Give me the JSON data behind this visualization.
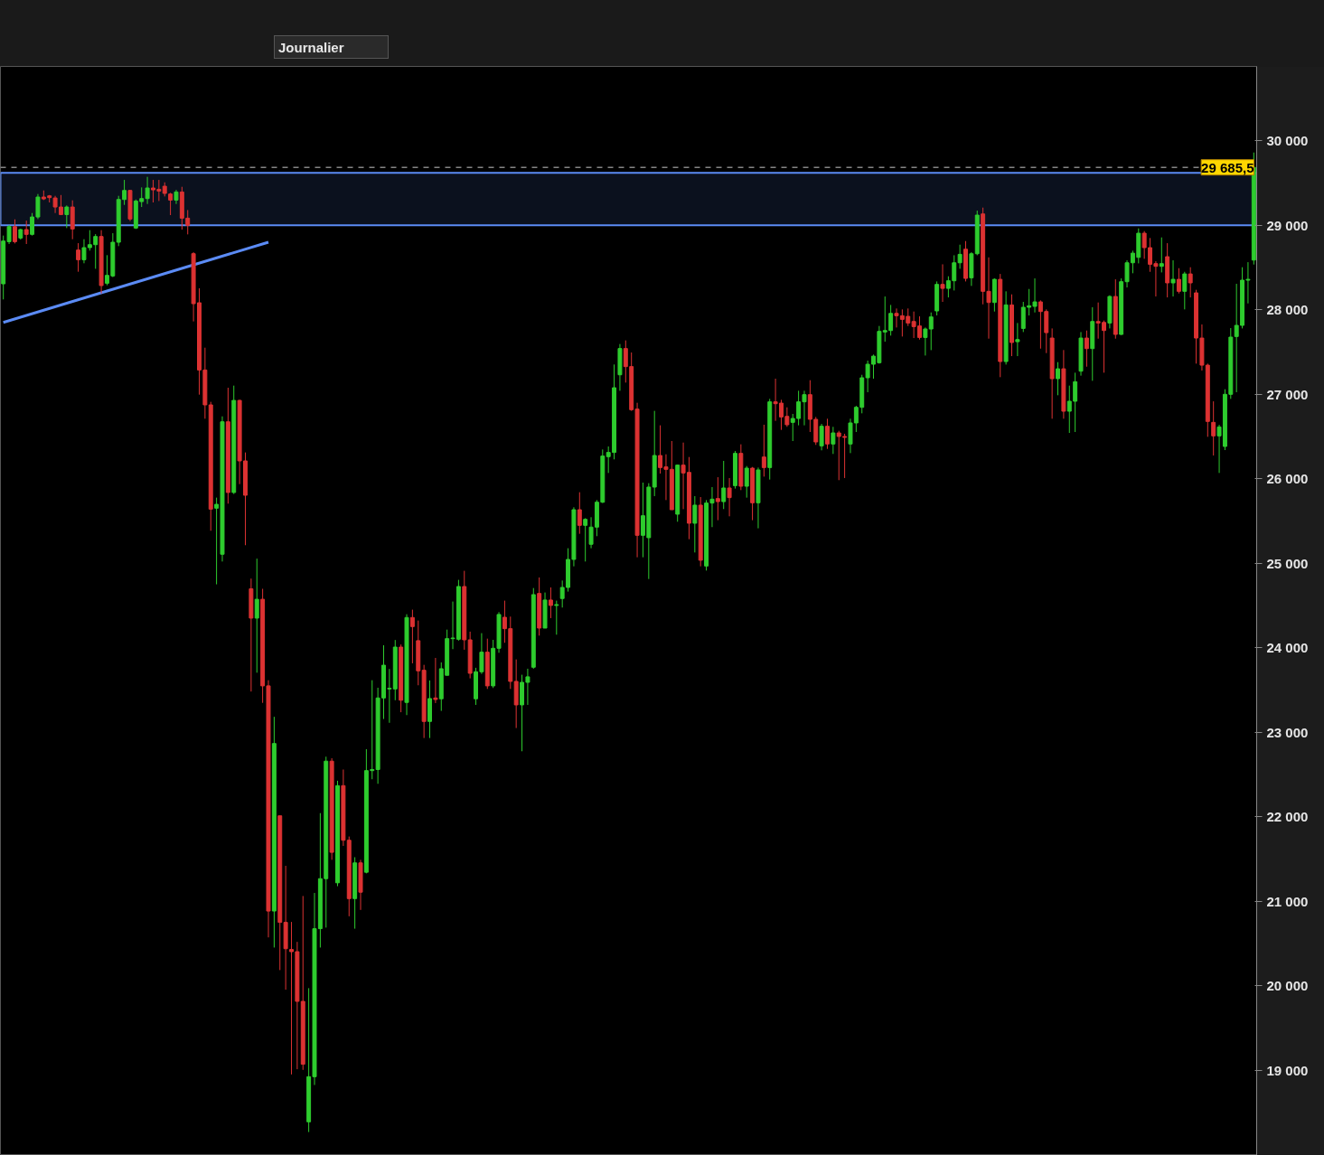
{
  "chart_data": {
    "type": "candlestick",
    "annotations": [
      "Journalier"
    ],
    "colors": [
      "#2ecc2e",
      "#2ecc2e",
      "#dc3232",
      "#2ecc2e",
      "#dc3232",
      "#2ecc2e",
      "#2ecc2e",
      "#dc3232",
      "#dc3232",
      "#dc3232",
      "#dc3232",
      "#2ecc2e",
      "#dc3232",
      "#dc3232",
      "#2ecc2e",
      "#2ecc2e",
      "#2ecc2e",
      "#dc3232",
      "#2ecc2e",
      "#2ecc2e",
      "#2ecc2e",
      "#2ecc2e",
      "#dc3232",
      "#2ecc2e",
      "#2ecc2e",
      "#2ecc2e",
      "#dc3232",
      "#dc3232",
      "#dc3232",
      "#dc3232",
      "#2ecc2e",
      "#dc3232",
      "#dc3232",
      "#dc3232",
      "#dc3232",
      "#dc3232",
      "#dc3232",
      "#2ecc2e",
      "#2ecc2e",
      "#dc3232",
      "#2ecc2e",
      "#dc3232",
      "#dc3232",
      "#dc3232",
      "#2ecc2e",
      "#dc3232",
      "#dc3232",
      "#2ecc2e",
      "#dc3232",
      "#dc3232",
      "#dc3232",
      "#dc3232",
      "#dc3232",
      "#2ecc2e",
      "#2ecc2e",
      "#2ecc2e",
      "#2ecc2e",
      "#dc3232",
      "#2ecc2e",
      "#dc3232",
      "#dc3232",
      "#2ecc2e",
      "#dc3232",
      "#2ecc2e",
      "#2ecc2e",
      "#2ecc2e",
      "#2ecc2e",
      "#2ecc2e",
      "#2ecc2e",
      "#dc3232",
      "#2ecc2e",
      "#dc3232",
      "#dc3232",
      "#dc3232",
      "#2ecc2e",
      "#dc3232",
      "#2ecc2e",
      "#2ecc2e",
      "#2ecc2e",
      "#2ecc2e",
      "#dc3232",
      "#dc3232",
      "#2ecc2e",
      "#2ecc2e",
      "#dc3232",
      "#2ecc2e",
      "#2ecc2e",
      "#dc3232",
      "#dc3232",
      "#dc3232",
      "#2ecc2e",
      "#2ecc2e",
      "#2ecc2e",
      "#dc3232",
      "#2ecc2e",
      "#dc3232",
      "#2ecc2e",
      "#2ecc2e",
      "#2ecc2e",
      "#2ecc2e",
      "#dc3232",
      "#2ecc2e",
      "#2ecc2e",
      "#2ecc2e",
      "#2ecc2e",
      "#2ecc2e",
      "#2ecc2e",
      "#2ecc2e",
      "#dc3232",
      "#dc3232",
      "#dc3232",
      "#2ecc2e",
      "#2ecc2e",
      "#2ecc2e",
      "#dc3232",
      "#dc3232",
      "#dc3232",
      "#2ecc2e",
      "#dc3232",
      "#dc3232",
      "#2ecc2e",
      "#dc3232",
      "#2ecc2e",
      "#2ecc2e",
      "#dc3232",
      "#2ecc2e",
      "#dc3232",
      "#2ecc2e",
      "#dc3232",
      "#2ecc2e",
      "#dc3232",
      "#2ecc2e",
      "#dc3232",
      "#2ecc2e",
      "#dc3232",
      "#dc3232",
      "#dc3232",
      "#2ecc2e",
      "#2ecc2e",
      "#2ecc2e",
      "#dc3232",
      "#dc3232",
      "#2ecc2e",
      "#dc3232",
      "#2ecc2e",
      "#dc3232",
      "#dc3232",
      "#2ecc2e",
      "#2ecc2e",
      "#2ecc2e",
      "#2ecc2e",
      "#2ecc2e",
      "#2ecc2e",
      "#2ecc2e",
      "#2ecc2e",
      "#dc3232",
      "#dc3232",
      "#dc3232",
      "#dc3232",
      "#dc3232",
      "#2ecc2e",
      "#2ecc2e",
      "#2ecc2e",
      "#dc3232",
      "#2ecc2e",
      "#2ecc2e",
      "#2ecc2e",
      "#dc3232",
      "#2ecc2e",
      "#2ecc2e",
      "#dc3232",
      "#dc3232",
      "#2ecc2e",
      "#dc3232",
      "#2ecc2e",
      "#dc3232",
      "#2ecc2e",
      "#2ecc2e",
      "#2ecc2e",
      "#2ecc2e",
      "#dc3232",
      "#dc3232",
      "#dc3232",
      "#2ecc2e",
      "#dc3232",
      "#2ecc2e",
      "#2ecc2e",
      "#2ecc2e",
      "#dc3232",
      "#2ecc2e",
      "#dc3232",
      "#dc3232",
      "#2ecc2e",
      "#dc3232",
      "#2ecc2e",
      "#2ecc2e",
      "#2ecc2e",
      "#2ecc2e",
      "#dc3232",
      "#dc3232",
      "#dc3232",
      "#2ecc2e",
      "#dc3232",
      "#2ecc2e",
      "#dc3232",
      "#2ecc2e",
      "#dc3232",
      "#dc3232",
      "#dc3232",
      "#dc3232",
      "#dc3232",
      "#2ecc2e",
      "#2ecc2e",
      "#2ecc2e",
      "#2ecc2e",
      "#2ecc2e",
      "#2ecc2e",
      "#2ecc2e"
    ],
    "categories": [
      null,
      null,
      null,
      null,
      null,
      null,
      null,
      null,
      null,
      null,
      null,
      null,
      null,
      null,
      null,
      null,
      null,
      null,
      null,
      null,
      null,
      null,
      null,
      null,
      null,
      null,
      null,
      null,
      null,
      null,
      null,
      null,
      null,
      null,
      null,
      null,
      null,
      null,
      null,
      null,
      null,
      null,
      null,
      null,
      null,
      null,
      null,
      null,
      null,
      null,
      null,
      null,
      null,
      null,
      null,
      null,
      null,
      null,
      null,
      null,
      null,
      null,
      null,
      null,
      null,
      null,
      null,
      null,
      null,
      null,
      null,
      null,
      null,
      null,
      null,
      null,
      null,
      null,
      null,
      null,
      null,
      null,
      null,
      null,
      null,
      null,
      null,
      null,
      null,
      null,
      null,
      null,
      null,
      null,
      null,
      null,
      null,
      null,
      null,
      null,
      null,
      null,
      null,
      null,
      null,
      null,
      null,
      null,
      null,
      null,
      null,
      null,
      null,
      null,
      null,
      null,
      null,
      null,
      null,
      null,
      null,
      null,
      null,
      null,
      null,
      null,
      null,
      null,
      null,
      null,
      null,
      null,
      null,
      null,
      null,
      null,
      null,
      null,
      null,
      null,
      null,
      null,
      null,
      null,
      null,
      null,
      null,
      null,
      null,
      null,
      null,
      null,
      null,
      null,
      null,
      null,
      null,
      null,
      null,
      null,
      null,
      null,
      null,
      null,
      null,
      null,
      null,
      null,
      null,
      null,
      null,
      null,
      null,
      null,
      null,
      null,
      null,
      null,
      null,
      null,
      null,
      null,
      null,
      null,
      null,
      null,
      null,
      null,
      null,
      null,
      null,
      null,
      null,
      null,
      null,
      null,
      null,
      null,
      null,
      null,
      null,
      null,
      null,
      null,
      null,
      null,
      null,
      null,
      null,
      null,
      null,
      null,
      null,
      null,
      null,
      null,
      null,
      null
    ],
    "ohlc": [
      [
        28307,
        28878,
        28122,
        28813
      ],
      [
        28806,
        29002,
        28778,
        28984
      ],
      [
        28984,
        29070,
        28785,
        28806
      ],
      [
        28849,
        28960,
        28830,
        28949
      ],
      [
        28949,
        29055,
        28778,
        28892
      ],
      [
        28892,
        29145,
        28878,
        29098
      ],
      [
        29098,
        29370,
        29073,
        29334
      ],
      [
        29334,
        29412,
        29298,
        29312
      ],
      [
        29348,
        29358,
        29270,
        29327
      ],
      [
        29323,
        29348,
        29145,
        29216
      ],
      [
        29216,
        29358,
        29120,
        29127
      ],
      [
        29127,
        29234,
        28967,
        29216
      ],
      [
        29216,
        29295,
        28835,
        28956
      ],
      [
        28707,
        28788,
        28450,
        28592
      ],
      [
        28592,
        28835,
        28550,
        28735
      ],
      [
        28735,
        28942,
        28700,
        28770
      ],
      [
        28770,
        28895,
        28485,
        28867
      ],
      [
        28867,
        28942,
        28193,
        28286
      ],
      [
        28314,
        28646,
        28290,
        28407
      ],
      [
        28400,
        28906,
        28386,
        28799
      ],
      [
        28799,
        29348,
        28753,
        29305
      ],
      [
        29305,
        29537,
        29241,
        29412
      ],
      [
        29412,
        29419,
        29049,
        29074
      ],
      [
        28967,
        29305,
        28956,
        29287
      ],
      [
        29280,
        29448,
        29216,
        29316
      ],
      [
        29316,
        29573,
        29252,
        29441
      ],
      [
        29441,
        29537,
        29270,
        29419
      ],
      [
        29426,
        29537,
        29287,
        29405
      ],
      [
        29462,
        29508,
        29341,
        29377
      ],
      [
        29370,
        29384,
        29120,
        29298
      ],
      [
        29298,
        29419,
        29252,
        29394
      ],
      [
        29394,
        29455,
        28949,
        29084
      ],
      [
        29084,
        29180,
        28892,
        28999
      ],
      [
        28664,
        28681,
        27862,
        28072
      ],
      [
        28083,
        28254,
        26995,
        27287
      ],
      [
        27287,
        27551,
        26710,
        26874
      ],
      [
        26874,
        26910,
        25384,
        25640
      ],
      [
        25651,
        25776,
        24750,
        25697
      ],
      [
        25106,
        26738,
        25020,
        26674
      ],
      [
        26674,
        27077,
        25705,
        25837
      ],
      [
        25837,
        27102,
        25819,
        26927
      ],
      [
        26927,
        26934,
        25936,
        26211
      ],
      [
        26211,
        26311,
        25213,
        25804
      ],
      [
        24697,
        24818,
        23481,
        24350
      ],
      [
        24350,
        25054,
        23704,
        24573
      ],
      [
        24573,
        24697,
        23347,
        23548
      ],
      [
        23548,
        23615,
        20571,
        20883
      ],
      [
        20883,
        23182,
        20451,
        22866
      ],
      [
        22010,
        22010,
        20184,
        20749
      ],
      [
        20749,
        21418,
        19952,
        20437
      ],
      [
        20428,
        20754,
        18949,
        20402
      ],
      [
        20402,
        20518,
        19011,
        19814
      ],
      [
        19814,
        21061,
        19003,
        19070
      ],
      [
        18388,
        19970,
        18267,
        18922
      ],
      [
        18922,
        21097,
        18824,
        20674
      ],
      [
        20674,
        22042,
        20451,
        21266
      ],
      [
        21266,
        22710,
        20687,
        22657
      ],
      [
        22657,
        22692,
        21489,
        21578
      ],
      [
        21217,
        22425,
        21177,
        22367
      ],
      [
        22367,
        22558,
        21654,
        21721
      ],
      [
        21721,
        21765,
        20821,
        21030
      ],
      [
        21030,
        21520,
        20674,
        21453
      ],
      [
        21453,
        21489,
        20896,
        21106
      ],
      [
        21342,
        22799,
        21329,
        22545
      ],
      [
        22545,
        23615,
        22443,
        22558
      ],
      [
        22558,
        23526,
        22389,
        23405
      ],
      [
        23405,
        24029,
        23156,
        23793
      ],
      [
        23512,
        23748,
        23111,
        23520
      ],
      [
        23512,
        24091,
        23378,
        24007
      ],
      [
        24007,
        24038,
        23236,
        23378
      ],
      [
        23352,
        24396,
        23202,
        24357
      ],
      [
        24357,
        24450,
        23815,
        24250
      ],
      [
        24083,
        24321,
        23555,
        23726
      ],
      [
        23733,
        23797,
        22931,
        23127
      ],
      [
        23127,
        23612,
        22931,
        23398
      ],
      [
        23405,
        23879,
        23345,
        23387
      ],
      [
        23395,
        23826,
        23252,
        23751
      ],
      [
        23673,
        24214,
        23673,
        24107
      ],
      [
        24107,
        24546,
        23983,
        24114
      ],
      [
        24100,
        24803,
        24083,
        24724
      ],
      [
        24724,
        24910,
        23976,
        24093
      ],
      [
        24093,
        24190,
        23637,
        23697
      ],
      [
        23395,
        23762,
        23323,
        23715
      ],
      [
        23715,
        24172,
        23690,
        23947
      ],
      [
        23947,
        24107,
        23512,
        23548
      ],
      [
        23548,
        24093,
        23523,
        23993
      ],
      [
        23993,
        24421,
        23940,
        24393
      ],
      [
        24360,
        24557,
        24058,
        24225
      ],
      [
        24225,
        24368,
        23512,
        23601
      ],
      [
        23601,
        23861,
        23049,
        23323
      ],
      [
        23323,
        23680,
        22774,
        23590
      ],
      [
        23590,
        23751,
        23323,
        23655
      ],
      [
        23769,
        24706,
        23751,
        24628
      ],
      [
        24642,
        24831,
        24143,
        24232
      ],
      [
        24232,
        24653,
        24232,
        24564
      ],
      [
        24564,
        24713,
        24350,
        24500
      ],
      [
        24500,
        24557,
        24154,
        24510
      ],
      [
        24582,
        24795,
        24475,
        24713
      ],
      [
        24713,
        25177,
        24664,
        25045
      ],
      [
        25045,
        25662,
        24963,
        25633
      ],
      [
        25633,
        25840,
        25348,
        25448
      ],
      [
        25448,
        25533,
        25020,
        25519
      ],
      [
        25224,
        25544,
        25177,
        25427
      ],
      [
        25427,
        25747,
        25320,
        25722
      ],
      [
        25722,
        26346,
        25712,
        26268
      ],
      [
        26261,
        26382,
        26068,
        26311
      ],
      [
        26311,
        27352,
        26229,
        27077
      ],
      [
        27230,
        27594,
        27041,
        27541
      ],
      [
        27541,
        27637,
        27138,
        27327
      ],
      [
        27327,
        27494,
        26803,
        26817
      ],
      [
        26824,
        26899,
        25070,
        25330
      ],
      [
        25330,
        25954,
        25070,
        25562
      ],
      [
        25302,
        25947,
        24813,
        25901
      ],
      [
        25901,
        26803,
        25794,
        26275
      ],
      [
        26275,
        26632,
        26061,
        26132
      ],
      [
        26140,
        26289,
        25747,
        26111
      ],
      [
        26111,
        26446,
        25633,
        25633
      ],
      [
        25580,
        26168,
        25491,
        26161
      ],
      [
        26161,
        26428,
        25640,
        26068
      ],
      [
        26075,
        26257,
        25284,
        25473
      ],
      [
        25473,
        25794,
        25127,
        25687
      ],
      [
        25687,
        25783,
        24963,
        25035
      ],
      [
        24967,
        25747,
        24913,
        25712
      ],
      [
        25712,
        25901,
        25427,
        25758
      ],
      [
        25765,
        26018,
        25509,
        25729
      ],
      [
        25729,
        26211,
        25641,
        25890
      ],
      [
        25890,
        26008,
        25555,
        25776
      ],
      [
        25918,
        26328,
        25883,
        26300
      ],
      [
        26300,
        26407,
        25865,
        25911
      ],
      [
        25911,
        26150,
        25776,
        26125
      ],
      [
        26125,
        26139,
        25509,
        25715
      ],
      [
        25715,
        26132,
        25413,
        26104
      ],
      [
        26257,
        26639,
        26025,
        26132
      ],
      [
        26132,
        26945,
        25990,
        26910
      ],
      [
        26910,
        27184,
        26685,
        26888
      ],
      [
        26895,
        26934,
        26578,
        26731
      ],
      [
        26738,
        26845,
        26614,
        26639
      ],
      [
        26667,
        26767,
        26446,
        26713
      ],
      [
        26713,
        27041,
        26632,
        26910
      ],
      [
        26910,
        27041,
        26632,
        26995
      ],
      [
        26995,
        27166,
        26553,
        26703
      ],
      [
        26703,
        26731,
        26400,
        26435
      ],
      [
        26389,
        26649,
        26336,
        26621
      ],
      [
        26621,
        26710,
        26353,
        26411
      ],
      [
        26411,
        26614,
        26293,
        26542
      ],
      [
        26542,
        26567,
        25983,
        26500
      ],
      [
        26500,
        26532,
        26008,
        26489
      ],
      [
        26411,
        26710,
        26303,
        26660
      ],
      [
        26660,
        26863,
        26553,
        26845
      ],
      [
        26845,
        27230,
        26774,
        27195
      ],
      [
        27195,
        27398,
        27024,
        27355
      ],
      [
        27355,
        27469,
        27184,
        27451
      ],
      [
        27373,
        27808,
        27362,
        27744
      ],
      [
        27737,
        28157,
        27622,
        27754
      ],
      [
        27754,
        28057,
        27694,
        27957
      ],
      [
        27957,
        28015,
        27790,
        27929
      ],
      [
        27929,
        28004,
        27683,
        27886
      ],
      [
        27922,
        28015,
        27808,
        27843
      ],
      [
        27861,
        27979,
        27665,
        27800
      ],
      [
        27808,
        27922,
        27647,
        27672
      ],
      [
        27672,
        27790,
        27458,
        27772
      ],
      [
        27772,
        27968,
        27522,
        27915
      ],
      [
        27986,
        28335,
        27933,
        28300
      ],
      [
        28300,
        28538,
        28093,
        28253
      ],
      [
        28253,
        28396,
        28146,
        28343
      ],
      [
        28343,
        28645,
        28228,
        28556
      ],
      [
        28556,
        28770,
        28485,
        28656
      ],
      [
        28717,
        28813,
        28335,
        28371
      ],
      [
        28378,
        28681,
        28282,
        28663
      ],
      [
        28663,
        29173,
        28645,
        29120
      ],
      [
        29134,
        29209,
        28064,
        28218
      ],
      [
        28218,
        28620,
        27658,
        28086
      ],
      [
        28086,
        28371,
        27979,
        28360
      ],
      [
        28360,
        28424,
        27202,
        27387
      ],
      [
        27387,
        28218,
        27351,
        28057
      ],
      [
        28057,
        28182,
        27451,
        27612
      ],
      [
        27622,
        27843,
        27451,
        27647
      ],
      [
        27779,
        28093,
        27736,
        28029
      ],
      [
        28029,
        28246,
        27932,
        28047
      ],
      [
        28040,
        28371,
        27968,
        28093
      ],
      [
        28093,
        28111,
        27540,
        27979
      ],
      [
        27979,
        28004,
        27487,
        27729
      ],
      [
        27665,
        27779,
        26710,
        27184
      ],
      [
        27184,
        27380,
        26988,
        27301
      ],
      [
        27301,
        27523,
        26710,
        26799
      ],
      [
        26799,
        27102,
        26542,
        26917
      ],
      [
        26917,
        27255,
        26553,
        27148
      ],
      [
        27273,
        27736,
        27220,
        27665
      ],
      [
        27665,
        27754,
        27326,
        27540
      ],
      [
        27540,
        28029,
        27159,
        27861
      ],
      [
        27861,
        28086,
        27658,
        27843
      ],
      [
        27850,
        27872,
        27255,
        27754
      ],
      [
        27843,
        28171,
        27779,
        28157
      ],
      [
        28157,
        28360,
        27658,
        27708
      ],
      [
        27708,
        28371,
        27701,
        28332
      ],
      [
        28332,
        28585,
        28264,
        28556
      ],
      [
        28556,
        28699,
        28432,
        28670
      ],
      [
        28620,
        28963,
        28549,
        28906
      ],
      [
        28906,
        28931,
        28603,
        28735
      ],
      [
        28735,
        28849,
        28449,
        28538
      ],
      [
        28546,
        28574,
        28157,
        28514
      ],
      [
        28514,
        28856,
        28442,
        28546
      ],
      [
        28628,
        28788,
        28146,
        28318
      ],
      [
        28318,
        28585,
        28157,
        28360
      ],
      [
        28360,
        28492,
        28193,
        28218
      ],
      [
        28218,
        28449,
        28004,
        28424
      ],
      [
        28424,
        28503,
        28146,
        28318
      ],
      [
        28200,
        28236,
        27362,
        27665
      ],
      [
        27665,
        27826,
        27280,
        27344
      ],
      [
        27344,
        27362,
        26496,
        26678
      ],
      [
        26667,
        26916,
        26275,
        26507
      ],
      [
        26507,
        26638,
        26068,
        26613
      ],
      [
        26382,
        27059,
        26339,
        26999
      ],
      [
        26999,
        27783,
        26945,
        27676
      ],
      [
        27683,
        28307,
        27024,
        27815
      ],
      [
        27815,
        28503,
        27779,
        28350
      ],
      [
        28350,
        28563,
        28075,
        28360
      ],
      [
        28588,
        29861,
        28535,
        29685.5
      ]
    ],
    "series": [
      {
        "type": "line",
        "color": "#5b8bf5",
        "values": [
          27850,
          null,
          null,
          null,
          null,
          null,
          null,
          null,
          null,
          null,
          null,
          null,
          null,
          null,
          null,
          null,
          null,
          null,
          null,
          null,
          null,
          null,
          null,
          null,
          null,
          null,
          null,
          null,
          null,
          null,
          null,
          null,
          null,
          null,
          null,
          null,
          null,
          null,
          null,
          null,
          null,
          null,
          null,
          null,
          null,
          null,
          28800,
          null,
          null,
          null,
          null,
          null,
          null,
          null,
          null,
          null,
          null,
          null,
          null,
          null,
          null,
          null,
          null,
          null,
          null,
          null,
          null,
          null,
          null,
          null,
          null,
          null,
          null,
          null,
          null,
          null,
          null,
          null,
          null,
          null,
          null,
          null,
          null,
          null,
          null,
          null,
          null,
          null,
          null,
          null,
          null,
          null,
          null,
          null,
          null,
          null,
          null,
          null,
          null,
          null,
          null,
          null,
          null,
          null,
          null,
          null,
          null,
          null,
          null,
          null,
          null,
          null,
          null,
          null,
          null,
          null,
          null,
          null,
          null,
          null,
          null,
          null,
          null,
          null,
          null,
          null,
          null,
          null,
          null,
          null,
          null,
          null,
          null,
          null,
          null,
          null,
          null,
          null,
          null,
          null,
          null,
          null,
          null,
          null,
          null,
          null,
          null,
          null,
          null,
          null,
          null,
          null,
          null,
          null,
          null,
          null,
          null,
          null,
          null,
          null,
          null,
          null,
          null,
          null,
          null,
          null,
          null,
          null,
          null,
          null,
          null,
          null,
          null,
          null,
          null,
          null,
          null,
          null,
          null,
          null,
          null,
          null,
          null,
          null,
          null,
          null,
          null,
          null,
          null,
          null,
          null,
          null,
          null,
          null,
          null,
          null,
          null,
          null,
          null,
          null,
          null,
          null,
          null,
          null,
          null,
          null,
          null,
          null,
          null,
          null,
          null,
          null,
          null,
          null,
          null,
          null,
          null,
          null
        ]
      }
    ],
    "ref_lines": [
      {
        "axis": "y",
        "value": 29685.5,
        "label": "29 685,5",
        "color": "#c8c8c8",
        "line_style": "dashed"
      }
    ],
    "bands": [
      {
        "axis": "y",
        "from": 29000,
        "to": 29620,
        "color": "#5b8bf5"
      }
    ],
    "ylim": [
      17990,
      30880
    ],
    "yticks": [
      {
        "value": 19000,
        "label": "19 000"
      },
      {
        "value": 20000,
        "label": "20 000"
      },
      {
        "value": 21000,
        "label": "21 000"
      },
      {
        "value": 22000,
        "label": "22 000"
      },
      {
        "value": 23000,
        "label": "23 000"
      },
      {
        "value": 24000,
        "label": "24 000"
      },
      {
        "value": 25000,
        "label": "25 000"
      },
      {
        "value": 26000,
        "label": "26 000"
      },
      {
        "value": 27000,
        "label": "27 000"
      },
      {
        "value": 28000,
        "label": "28 000"
      },
      {
        "value": 29000,
        "label": "29 000"
      },
      {
        "value": 30000,
        "label": "30 000"
      }
    ],
    "tick_labels": "y"
  }
}
